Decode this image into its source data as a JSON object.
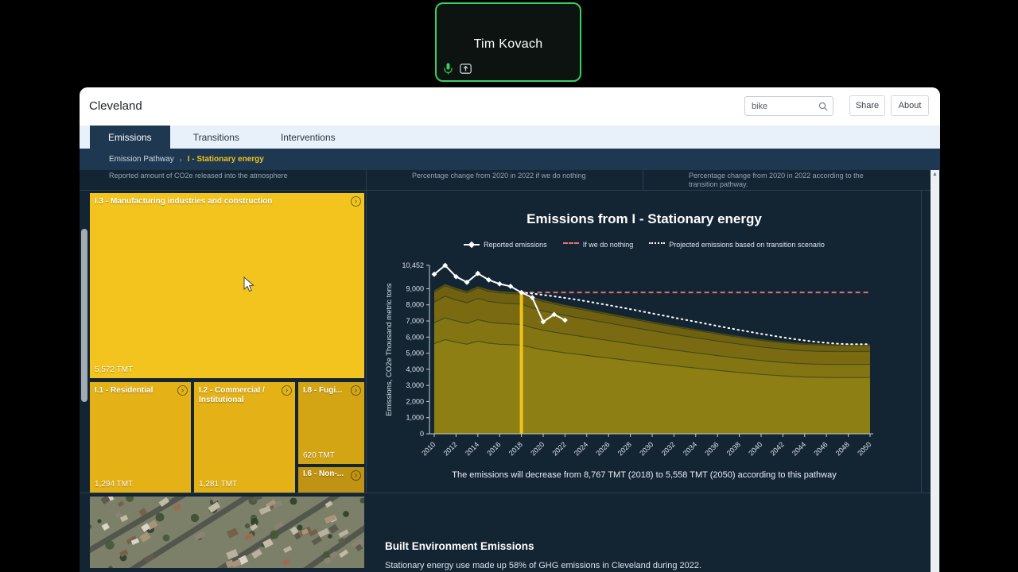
{
  "video_tile": {
    "name": "Tim Kovach"
  },
  "window": {
    "title": "Cleveland",
    "search": {
      "value": "bike"
    },
    "buttons": {
      "share": "Share",
      "about": "About"
    },
    "tabs": [
      {
        "label": "Emissions",
        "active": true
      },
      {
        "label": "Transitions",
        "active": false
      },
      {
        "label": "Interventions",
        "active": false
      }
    ],
    "breadcrumb": {
      "root": "Emission Pathway",
      "current": "I - Stationary energy"
    }
  },
  "hints": {
    "left": "Reported amount of CO2e released into the atmosphere",
    "middle": "Percentage change from 2020 in 2022 if we do nothing",
    "right": "Percentage change from 2020 in 2022 according to the transition pathway."
  },
  "treemap": {
    "boxes": [
      {
        "id": "I.3",
        "label": "I.3 - Manufacturing industries and construction",
        "value": "5,572 TMT"
      },
      {
        "id": "I.1",
        "label": "I.1 - Residential",
        "value": "1,294 TMT"
      },
      {
        "id": "I.2",
        "label": "I.2 - Commercial / Institutional",
        "value": "1,281 TMT"
      },
      {
        "id": "I.8",
        "label": "I.8 - Fugi...",
        "value": "620 TMT"
      },
      {
        "id": "I.6",
        "label": "I.6 - Non-...",
        "value": ""
      }
    ]
  },
  "chart_data": {
    "type": "area",
    "title": "Emissions from I - Stationary energy",
    "ylabel": "Emissions, CO2e Thousand metric tons",
    "ylim": [
      0,
      10452
    ],
    "yticks": [
      0,
      1000,
      2000,
      3000,
      4000,
      5000,
      6000,
      7000,
      8000,
      9000,
      10452
    ],
    "xlim": [
      2010,
      2050
    ],
    "xtick_step": 2,
    "highlight_year": 2018,
    "accent_color": "#f1c21b",
    "caption": "The emissions will decrease from 8,767 TMT (2018) to 5,558 TMT (2050) according to this pathway",
    "legend": [
      {
        "label": "Reported emissions",
        "style": "marker-line",
        "color": "#ffffff"
      },
      {
        "label": "If we do nothing",
        "style": "dashed",
        "color": "#e0716e"
      },
      {
        "label": "Projected emissions based on transition scenario",
        "style": "dotted",
        "color": "#ffffff"
      }
    ],
    "reported": {
      "x_start": 2010,
      "values": [
        9900,
        10452,
        9750,
        9400,
        9950,
        9550,
        9300,
        9150,
        8767,
        8450,
        6950,
        7400,
        7050
      ]
    },
    "do_nothing": {
      "x_start": 2018,
      "x_end": 2050,
      "value": 8767
    },
    "projected": {
      "x_start": 2018,
      "values": [
        8767,
        8700,
        8620,
        8530,
        8430,
        8330,
        8220,
        8100,
        7980,
        7860,
        7730,
        7600,
        7470,
        7340,
        7210,
        7080,
        6950,
        6820,
        6690,
        6560,
        6440,
        6320,
        6200,
        6090,
        5980,
        5880,
        5790,
        5710,
        5640,
        5590,
        5560,
        5558,
        5558
      ]
    },
    "area": {
      "x_start": 2010,
      "total": [
        8900,
        9300,
        9050,
        8850,
        9150,
        8950,
        8850,
        8800,
        8767,
        8500,
        8300,
        8150,
        8000,
        7870,
        7740,
        7610,
        7480,
        7350,
        7220,
        7090,
        6960,
        6840,
        6720,
        6600,
        6490,
        6380,
        6270,
        6160,
        6060,
        5960,
        5870,
        5790,
        5720,
        5660,
        5610,
        5580,
        5565,
        5558,
        5558,
        5558,
        5558
      ],
      "fractions": [
        0.628,
        0.146,
        0.144,
        0.07,
        0.012
      ],
      "band_labels": [
        "I.3",
        "I.1",
        "I.2",
        "I.8",
        "I.6"
      ]
    }
  },
  "built_env": {
    "heading": "Built Environment Emissions",
    "body": "Stationary energy use made up 58% of GHG emissions in Cleveland during 2022."
  }
}
